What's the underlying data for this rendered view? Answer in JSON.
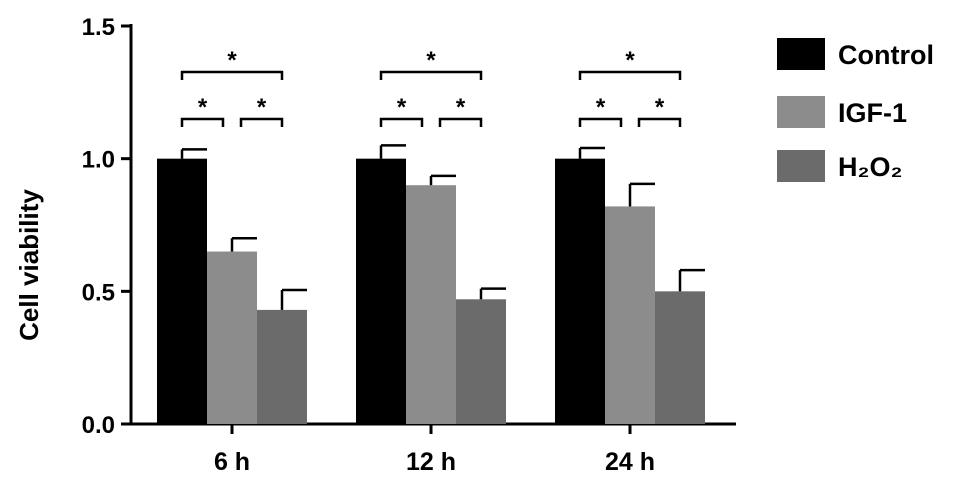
{
  "chart_data": {
    "type": "bar",
    "ylabel": "Cell viability",
    "ylim": [
      0,
      1.5
    ],
    "yticks": [
      "0.0",
      "0.5",
      "1.0",
      "1.5"
    ],
    "categories": [
      "6 h",
      "12 h",
      "24 h"
    ],
    "series": [
      {
        "name": "Control",
        "values": [
          1.0,
          1.0,
          1.0
        ],
        "errors": [
          0.035,
          0.05,
          0.04
        ],
        "color": "#000000"
      },
      {
        "name": "IGF-1",
        "values": [
          0.65,
          0.9,
          0.82
        ],
        "errors": [
          0.05,
          0.035,
          0.085
        ],
        "color": "#8c8c8c"
      },
      {
        "name": "H₂O₂",
        "values": [
          0.43,
          0.47,
          0.5
        ],
        "errors": [
          0.075,
          0.04,
          0.08
        ],
        "color": "#6b6b6b"
      }
    ],
    "significance": [
      {
        "group": "6 h",
        "pairs": [
          [
            "Control",
            "H₂O₂"
          ],
          [
            "Control",
            "IGF-1"
          ],
          [
            "IGF-1",
            "H₂O₂"
          ]
        ],
        "symbol": "*"
      },
      {
        "group": "12 h",
        "pairs": [
          [
            "Control",
            "H₂O₂"
          ],
          [
            "Control",
            "IGF-1"
          ],
          [
            "IGF-1",
            "H₂O₂"
          ]
        ],
        "symbol": "*"
      },
      {
        "group": "24 h",
        "pairs": [
          [
            "Control",
            "H₂O₂"
          ],
          [
            "Control",
            "IGF-1"
          ],
          [
            "IGF-1",
            "H₂O₂"
          ]
        ],
        "symbol": "*"
      }
    ],
    "legend_position": "right",
    "grid": false
  }
}
